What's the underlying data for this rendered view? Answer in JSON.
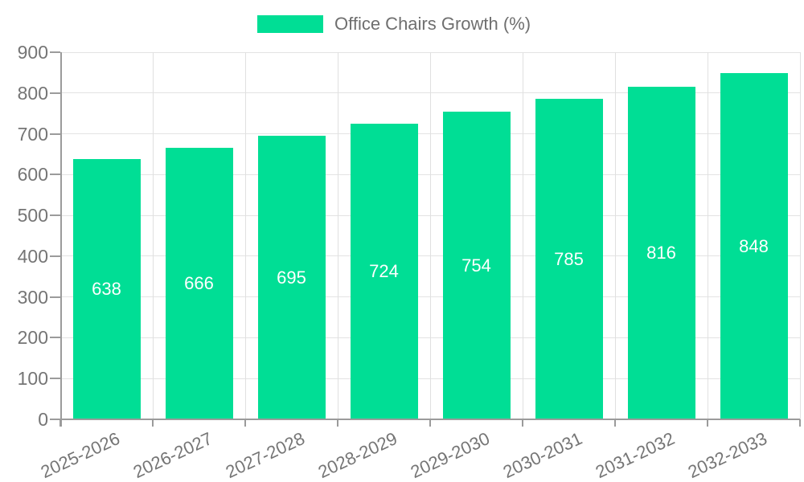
{
  "legend": {
    "label": "Office Chairs Growth (%)"
  },
  "chart_data": {
    "type": "bar",
    "title": "Office Chairs Growth (%)",
    "series_name": "Office Chairs Growth (%)",
    "categories": [
      "2025-2026",
      "2026-2027",
      "2027-2028",
      "2028-2029",
      "2029-2030",
      "2030-2031",
      "2031-2032",
      "2032-2033"
    ],
    "values": [
      638,
      666,
      695,
      724,
      754,
      785,
      816,
      848
    ],
    "data_labels": [
      "638",
      "666",
      "695",
      "724",
      "754",
      "785",
      "816",
      "848"
    ],
    "xlabel": "",
    "ylabel": "",
    "ylim": [
      0,
      900
    ],
    "yticks": [
      0,
      100,
      200,
      300,
      400,
      500,
      600,
      700,
      800,
      900
    ],
    "grid": true,
    "legend_position": "top"
  },
  "colors": {
    "bar": "#00de95",
    "bar_label": "#ffffff",
    "axis": "#9b9b9b",
    "grid_h": "#e3e3e3",
    "grid_v": "#e0e0e0",
    "tick_label": "#757575",
    "legend_text": "#6f6f6f",
    "background": "#ffffff"
  }
}
